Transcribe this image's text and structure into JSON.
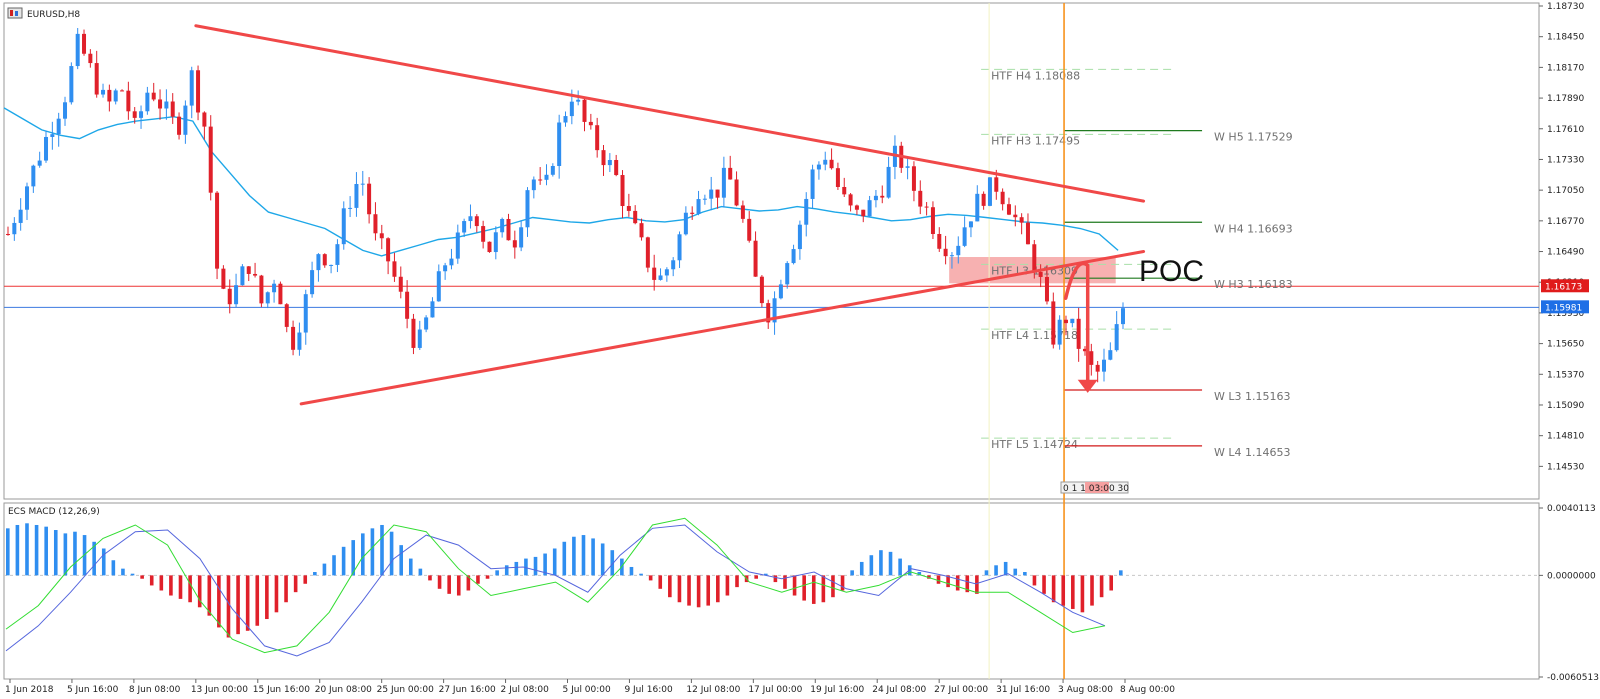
{
  "chart_title": "EURUSD,H8",
  "indicator_title": "ECS MACD (12,26,9)",
  "poc_label": "POC",
  "timescale_label": "0 1 1 03:00 30",
  "colors": {
    "bull": "#2f8ef0",
    "bear": "#e0202a",
    "ma": "#1ea7e8",
    "trendline": "#f04848",
    "poc_zone": "#f6a3a3",
    "red_hline": "#ee3333",
    "blue_hline": "#3b79e0",
    "current_price_tag": "#e01b1b",
    "bid_tag": "#1e6fe6",
    "orange_vline": "#f7931e",
    "macd_line": "#5566dd",
    "signal_line": "#33dd33",
    "resistance_green": "#1f7a1f",
    "support_red": "#d21a1a"
  },
  "chart_data": [
    {
      "type": "candlestick",
      "symbol": "EURUSD",
      "timeframe": "H8",
      "ylim": [
        1.1436,
        1.1873
      ],
      "price_ticks": [
        "1.18730",
        "1.18450",
        "1.18170",
        "1.17890",
        "1.17610",
        "1.17330",
        "1.17050",
        "1.16770",
        "1.16490",
        "1.16210",
        "1.15930",
        "1.15650",
        "1.15370",
        "1.15090",
        "1.14810",
        "1.14530"
      ],
      "x_tick_labels": [
        "1 Jun 2018",
        "5 Jun 16:00",
        "8 Jun 08:00",
        "13 Jun 00:00",
        "15 Jun 16:00",
        "20 Jun 08:00",
        "25 Jun 00:00",
        "27 Jun 16:00",
        "2 Jul 08:00",
        "5 Jul 00:00",
        "9 Jul 16:00",
        "12 Jul 08:00",
        "17 Jul 00:00",
        "19 Jul 16:00",
        "24 Jul 08:00",
        "27 Jul 00:00",
        "31 Jul 16:00",
        "3 Aug 08:00",
        "8 Aug 00:00"
      ],
      "current_price": {
        "label": "1.16173",
        "value": 1.16173
      },
      "bid_price": {
        "label": "1.15981",
        "value": 1.15981
      },
      "close_path": [
        1.1665,
        1.17,
        1.173,
        1.1762,
        1.179,
        1.184,
        1.181,
        1.178,
        1.18,
        1.176,
        1.18,
        1.178,
        1.176,
        1.181,
        1.176,
        1.1605,
        1.161,
        1.164,
        1.16,
        1.163,
        1.156,
        1.16,
        1.165,
        1.164,
        1.169,
        1.172,
        1.166,
        1.164,
        1.16,
        1.156,
        1.16,
        1.164,
        1.166,
        1.169,
        1.165,
        1.167,
        1.166,
        1.172,
        1.17,
        1.176,
        1.1795,
        1.176,
        1.174,
        1.172,
        1.168,
        1.165,
        1.162,
        1.164,
        1.168,
        1.171,
        1.17,
        1.172,
        1.168,
        1.162,
        1.159,
        1.164,
        1.167,
        1.172,
        1.174,
        1.17,
        1.168,
        1.169,
        1.171,
        1.174,
        1.171,
        1.169,
        1.166,
        1.165,
        1.168,
        1.17,
        1.171,
        1.169,
        1.166,
        1.163,
        1.157,
        1.159,
        1.156,
        1.1535,
        1.155,
        1.1598
      ],
      "ma_path": [
        1.178,
        1.177,
        1.176,
        1.1755,
        1.1752,
        1.176,
        1.1765,
        1.1768,
        1.177,
        1.1772,
        1.1768,
        1.174,
        1.172,
        1.17,
        1.1685,
        1.168,
        1.1675,
        1.167,
        1.166,
        1.165,
        1.1645,
        1.165,
        1.1655,
        1.166,
        1.1662,
        1.1666,
        1.167,
        1.1675,
        1.168,
        1.1678,
        1.1676,
        1.1675,
        1.1678,
        1.168,
        1.1677,
        1.1676,
        1.1678,
        1.1685,
        1.169,
        1.1688,
        1.1686,
        1.1687,
        1.169,
        1.1688,
        1.1685,
        1.1683,
        1.168,
        1.1677,
        1.1678,
        1.1681,
        1.1683,
        1.1682,
        1.168,
        1.1678,
        1.1676,
        1.1675,
        1.1673,
        1.167,
        1.1665,
        1.165
      ],
      "triangle": {
        "upper": {
          "from": {
            "x": "13 Jun 00:00",
            "y": 1.1855
          },
          "to": {
            "x": "8 Aug 16:00",
            "y": 1.1695
          }
        },
        "lower": {
          "from": {
            "x": "19 Jun 16:00",
            "y": 1.151
          },
          "to": {
            "x": "8 Aug 16:00",
            "y": 1.1649
          }
        }
      },
      "poc_zone": {
        "y_top": 1.1644,
        "y_bottom": 1.162,
        "x_from": "27 Jul 00:00",
        "x_to": "7 Aug 08:00"
      },
      "htf_levels": [
        {
          "label": "HTF  H4 1.18088",
          "value": 1.18088
        },
        {
          "label": "HTF  H3 1.17495",
          "value": 1.17495
        },
        {
          "label": "HTF  L3 1.16309",
          "value": 1.16309
        },
        {
          "label": "HTF  L4 1.15718",
          "value": 1.15718
        },
        {
          "label": "HTF  L5 1.14724",
          "value": 1.14724
        }
      ],
      "weekly_levels": [
        {
          "label": "W  H5 1.17529",
          "value": 1.17529,
          "color": "resistance_green"
        },
        {
          "label": "W  H4 1.16693",
          "value": 1.16693,
          "color": "resistance_green"
        },
        {
          "label": "W  H3 1.16183",
          "value": 1.16183,
          "color": "resistance_green"
        },
        {
          "label": "W  L3 1.15163",
          "value": 1.15163,
          "color": "support_red"
        },
        {
          "label": "W  L4 1.14653",
          "value": 1.14653,
          "color": "support_red"
        }
      ]
    },
    {
      "type": "bar",
      "name": "ECS MACD (12,26,9)",
      "ylim": [
        -0.0060513,
        0.0040113
      ],
      "y_tick_labels": [
        "0.0040113",
        "0.0000000",
        "-0.0060513"
      ],
      "histogram": [
        0.0028,
        0.003,
        0.0031,
        0.003,
        0.0029,
        0.0027,
        0.0025,
        0.0026,
        0.0024,
        0.002,
        0.0016,
        0.0009,
        0.0004,
        0.0001,
        -0.0002,
        -0.0006,
        -0.0009,
        -0.0012,
        -0.0014,
        -0.0016,
        -0.0019,
        -0.0024,
        -0.0031,
        -0.0037,
        -0.0035,
        -0.0033,
        -0.003,
        -0.0026,
        -0.0022,
        -0.0016,
        -0.001,
        -0.0005,
        0.0002,
        0.0007,
        0.0012,
        0.0017,
        0.0021,
        0.0025,
        0.0028,
        0.003,
        0.0026,
        0.0018,
        0.001,
        0.0004,
        -0.0003,
        -0.0008,
        -0.0011,
        -0.0012,
        -0.0009,
        -0.0005,
        -0.0002,
        0.0003,
        0.0006,
        0.0008,
        0.001,
        0.0011,
        0.0013,
        0.0016,
        0.002,
        0.0023,
        0.0024,
        0.0022,
        0.0019,
        0.0015,
        0.001,
        0.0005,
        0.0001,
        -0.0003,
        -0.0008,
        -0.0013,
        -0.0016,
        -0.0018,
        -0.0019,
        -0.0018,
        -0.0016,
        -0.0012,
        -0.0007,
        -0.0004,
        -0.0002,
        0.0001,
        -0.0004,
        -0.0008,
        -0.0012,
        -0.0015,
        -0.0017,
        -0.0016,
        -0.0013,
        -0.0009,
        0.0003,
        0.0008,
        0.0012,
        0.0015,
        0.0014,
        0.001,
        0.0006,
        0.0002,
        -0.0002,
        -0.0005,
        -0.0007,
        -0.0009,
        -0.001,
        -0.0011,
        0.0003,
        0.0006,
        0.0008,
        0.0004,
        0.0002,
        -0.0006,
        -0.0011,
        -0.0016,
        -0.0018,
        -0.002,
        -0.0022,
        -0.0018,
        -0.0013,
        -0.0009,
        0.0003
      ],
      "macd_path": [
        -0.0045,
        -0.003,
        -0.001,
        0.0012,
        0.0026,
        0.0027,
        0.001,
        -0.002,
        -0.0042,
        -0.0048,
        -0.004,
        -0.0016,
        0.001,
        0.0024,
        0.0018,
        0.0004,
        0.0005,
        0.0,
        -0.001,
        0.0012,
        0.0028,
        0.003,
        0.0014,
        0.0002,
        -0.0002,
        0.0002,
        -0.0008,
        -0.0012,
        0.0004,
        0.0,
        -0.0005,
        0.0001,
        -0.001,
        -0.0022,
        -0.003
      ],
      "signal_path": [
        -0.0032,
        -0.0018,
        0.0005,
        0.0022,
        0.003,
        0.0018,
        -0.0015,
        -0.0038,
        -0.0046,
        -0.0042,
        -0.0022,
        0.001,
        0.003,
        0.0026,
        0.0004,
        -0.0012,
        -0.0008,
        -0.0004,
        -0.0016,
        0.0004,
        0.003,
        0.0034,
        0.0018,
        -0.0004,
        -0.001,
        -0.0004,
        -0.001,
        -0.0006,
        0.0002,
        -0.0004,
        -0.001,
        -0.001,
        -0.0022,
        -0.0034,
        -0.003
      ]
    }
  ]
}
